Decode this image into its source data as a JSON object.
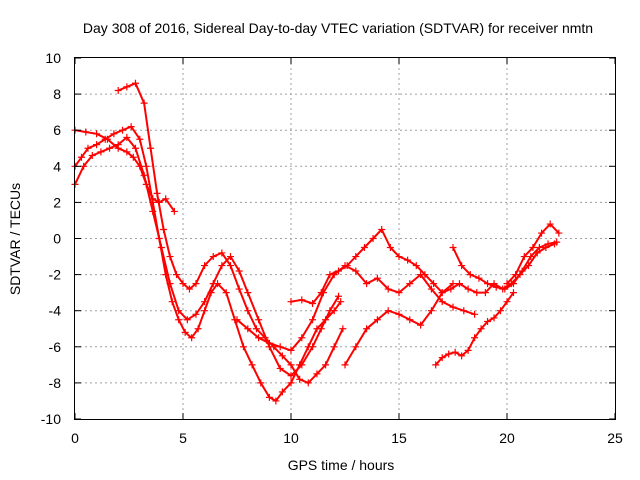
{
  "chart_data": {
    "type": "scatter",
    "title": "Day 308 of 2016, Sidereal Day-to-day VTEC variation (SDTVAR) for receiver nmtn",
    "xlabel": "GPS time / hours",
    "ylabel": "SDTVAR / TECUs",
    "xlim": [
      0,
      25
    ],
    "ylim": [
      -10,
      10
    ],
    "xticks": [
      "0",
      "5",
      "10",
      "15",
      "20",
      "25"
    ],
    "yticks": [
      "-10",
      "-8",
      "-6",
      "-4",
      "-2",
      "0",
      "2",
      "4",
      "6",
      "8",
      "10"
    ],
    "grid": true,
    "marker": "plus",
    "color": "#ff0000",
    "series": [
      {
        "x": [
          0.0,
          0.3,
          0.6,
          1.0,
          1.4,
          1.8,
          2.2,
          2.6,
          3.0,
          3.3,
          3.6,
          3.9,
          4.2,
          4.5,
          4.8,
          5.1,
          5.4,
          5.7,
          6.0,
          6.3,
          6.6,
          7.0,
          7.4,
          7.8,
          8.2,
          8.6,
          9.0,
          9.3,
          9.6,
          10.0,
          10.4,
          10.8,
          11.2,
          11.6,
          12.0,
          12.3
        ],
        "y": [
          4.0,
          4.5,
          5.0,
          5.2,
          5.5,
          5.8,
          6.0,
          6.2,
          5.5,
          4.0,
          2.0,
          0.0,
          -2.0,
          -3.5,
          -4.5,
          -5.2,
          -5.5,
          -5.0,
          -4.0,
          -3.0,
          -2.5,
          -3.0,
          -4.5,
          -6.0,
          -7.0,
          -8.0,
          -8.8,
          -9.0,
          -8.5,
          -8.0,
          -7.0,
          -6.0,
          -5.0,
          -4.5,
          -4.0,
          -3.5
        ]
      },
      {
        "x": [
          0.0,
          0.4,
          0.8,
          1.2,
          1.6,
          2.0,
          2.4,
          2.8,
          3.2,
          3.6,
          4.0,
          4.4,
          4.8,
          5.2,
          5.6,
          6.0,
          6.4,
          6.8,
          7.2,
          7.6,
          8.0,
          8.5,
          9.0,
          9.5,
          10.0,
          10.5,
          11.0,
          11.4,
          11.8,
          12.2
        ],
        "y": [
          3.0,
          4.0,
          4.6,
          4.8,
          5.0,
          5.2,
          5.6,
          5.0,
          3.5,
          1.5,
          -0.5,
          -2.5,
          -4.0,
          -4.5,
          -4.2,
          -3.5,
          -2.5,
          -1.5,
          -1.0,
          -1.8,
          -3.0,
          -4.5,
          -6.0,
          -7.2,
          -7.6,
          -7.0,
          -6.0,
          -5.0,
          -4.0,
          -3.2
        ]
      },
      {
        "x": [
          0.0,
          0.5,
          1.0,
          1.5,
          2.0,
          2.4,
          2.7,
          3.0,
          3.3,
          3.6,
          3.9,
          4.2,
          4.6
        ],
        "y": [
          6.0,
          5.9,
          5.8,
          5.5,
          5.0,
          4.8,
          4.5,
          4.0,
          3.0,
          2.2,
          2.0,
          2.2,
          1.5
        ]
      },
      {
        "x": [
          2.0,
          2.4,
          2.8,
          3.2,
          3.5,
          3.8,
          4.1,
          4.4,
          4.7,
          5.0,
          5.3,
          5.6,
          6.0,
          6.4,
          6.8,
          7.2,
          7.6,
          8.0,
          8.4,
          8.8,
          9.2,
          9.6,
          10.0,
          10.4,
          10.8,
          11.2,
          11.6,
          12.0,
          12.4
        ],
        "y": [
          8.2,
          8.4,
          8.6,
          7.5,
          5.0,
          2.5,
          0.5,
          -1.0,
          -2.0,
          -2.5,
          -2.8,
          -2.5,
          -1.5,
          -1.0,
          -0.8,
          -1.5,
          -2.8,
          -4.0,
          -5.0,
          -5.5,
          -6.0,
          -6.5,
          -7.0,
          -7.8,
          -8.0,
          -7.5,
          -7.0,
          -6.0,
          -5.0
        ]
      },
      {
        "x": [
          7.5,
          8.0,
          8.5,
          9.0,
          9.5,
          10.0,
          10.5,
          11.0,
          11.5,
          12.0,
          12.5,
          13.0,
          13.5,
          14.0,
          14.5,
          15.0,
          15.5,
          16.0,
          16.5,
          17.0,
          17.5,
          18.0,
          18.5
        ],
        "y": [
          -4.5,
          -5.0,
          -5.5,
          -5.8,
          -6.0,
          -6.2,
          -5.5,
          -4.5,
          -3.0,
          -2.0,
          -1.5,
          -1.8,
          -2.5,
          -2.2,
          -2.8,
          -3.0,
          -2.5,
          -2.0,
          -2.8,
          -3.5,
          -3.8,
          -4.0,
          -4.2
        ]
      },
      {
        "x": [
          10.0,
          10.5,
          11.0,
          11.4,
          11.8,
          12.2,
          12.6,
          13.0,
          13.4,
          13.8,
          14.2,
          14.6,
          15.0,
          15.4,
          15.8,
          16.2,
          16.6,
          17.0,
          17.4,
          17.8,
          18.2,
          18.6,
          19.0,
          19.4,
          19.8,
          20.2,
          20.6,
          21.0,
          21.4,
          21.8,
          22.2
        ],
        "y": [
          -3.5,
          -3.4,
          -3.6,
          -3.0,
          -2.0,
          -1.8,
          -1.5,
          -1.0,
          -0.5,
          0.0,
          0.5,
          -0.5,
          -1.0,
          -1.2,
          -1.5,
          -2.0,
          -2.5,
          -3.0,
          -2.8,
          -2.5,
          -2.8,
          -3.0,
          -3.0,
          -2.5,
          -2.8,
          -2.5,
          -2.0,
          -1.5,
          -0.8,
          -0.5,
          -0.3
        ]
      },
      {
        "x": [
          12.5,
          13.0,
          13.5,
          14.0,
          14.5,
          15.0,
          15.5,
          16.0,
          16.5,
          17.0,
          17.5
        ],
        "y": [
          -7.0,
          -6.0,
          -5.0,
          -4.5,
          -4.0,
          -4.2,
          -4.5,
          -4.8,
          -4.0,
          -3.0,
          -2.5
        ]
      },
      {
        "x": [
          16.7,
          17.0,
          17.3,
          17.6,
          17.9,
          18.2,
          18.5,
          18.8,
          19.1,
          19.4,
          19.7,
          20.0,
          20.3
        ],
        "y": [
          -7.0,
          -6.6,
          -6.4,
          -6.3,
          -6.5,
          -6.2,
          -5.5,
          -5.0,
          -4.6,
          -4.4,
          -4.0,
          -3.5,
          -3.0
        ]
      },
      {
        "x": [
          17.5,
          17.9,
          18.3,
          18.7,
          19.1,
          19.5,
          19.9,
          20.3,
          20.7,
          21.1,
          21.5,
          21.9,
          22.3
        ],
        "y": [
          -0.5,
          -1.5,
          -2.0,
          -2.2,
          -2.5,
          -2.7,
          -2.8,
          -2.5,
          -1.8,
          -1.0,
          -0.5,
          -0.3,
          -0.2
        ]
      },
      {
        "x": [
          20.0,
          20.4,
          20.8,
          21.2,
          21.6,
          22.0,
          22.4
        ],
        "y": [
          -2.5,
          -2.0,
          -1.0,
          -0.5,
          0.3,
          0.8,
          0.3
        ]
      }
    ]
  }
}
